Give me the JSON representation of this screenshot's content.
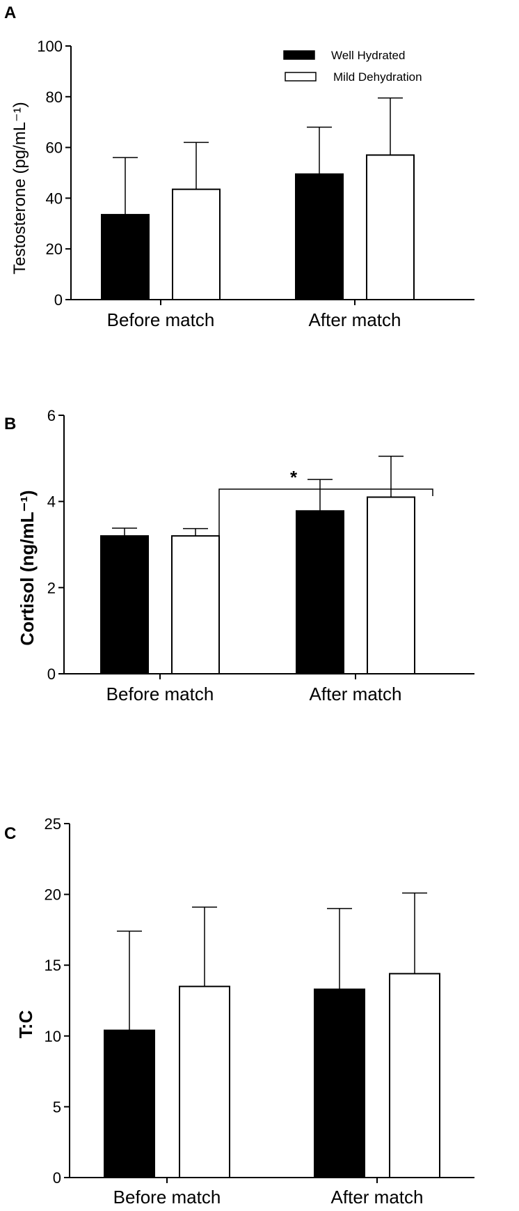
{
  "legend": {
    "well_hydrated": "Well Hydrated",
    "mild_dehydration": "Mild Dehydration"
  },
  "colors": {
    "well_hydrated": "#000000",
    "mild_dehydration": "#ffffff"
  },
  "chart_data": [
    {
      "type": "bar",
      "panel": "A",
      "ylabel": "Testosterone (pg/mL⁻¹)",
      "categories": [
        "Before match",
        "After match"
      ],
      "ylim": [
        0,
        100
      ],
      "yticks": [
        0,
        20,
        40,
        60,
        80,
        100
      ],
      "series": [
        {
          "name": "Well Hydrated",
          "values": [
            33.5,
            49.5
          ],
          "errors": [
            22.5,
            18.5
          ]
        },
        {
          "name": "Mild Dehydration",
          "values": [
            43.5,
            57
          ],
          "errors": [
            18.5,
            22.5
          ]
        }
      ],
      "legend_position": "top-right",
      "grid": false
    },
    {
      "type": "bar",
      "panel": "B",
      "ylabel": "Cortisol (ng/mL⁻¹)",
      "categories": [
        "Before match",
        "After match"
      ],
      "ylim": [
        0,
        6
      ],
      "yticks": [
        0,
        2,
        4,
        6
      ],
      "series": [
        {
          "name": "Well Hydrated",
          "values": [
            3.2,
            3.78
          ],
          "errors": [
            0.18,
            0.73
          ]
        },
        {
          "name": "Mild Dehydration",
          "values": [
            3.2,
            4.1
          ],
          "errors": [
            0.17,
            0.95
          ]
        }
      ],
      "annotation": {
        "text": "*"
      },
      "grid": false
    },
    {
      "type": "bar",
      "panel": "C",
      "ylabel": "T:C",
      "categories": [
        "Before match",
        "After match"
      ],
      "ylim": [
        0,
        25
      ],
      "yticks": [
        0,
        5,
        10,
        15,
        20,
        25
      ],
      "series": [
        {
          "name": "Well Hydrated",
          "values": [
            10.4,
            13.3
          ],
          "errors": [
            7.0,
            5.7
          ]
        },
        {
          "name": "Mild Dehydration",
          "values": [
            13.5,
            14.4
          ],
          "errors": [
            5.6,
            5.7
          ]
        }
      ],
      "grid": false
    }
  ]
}
